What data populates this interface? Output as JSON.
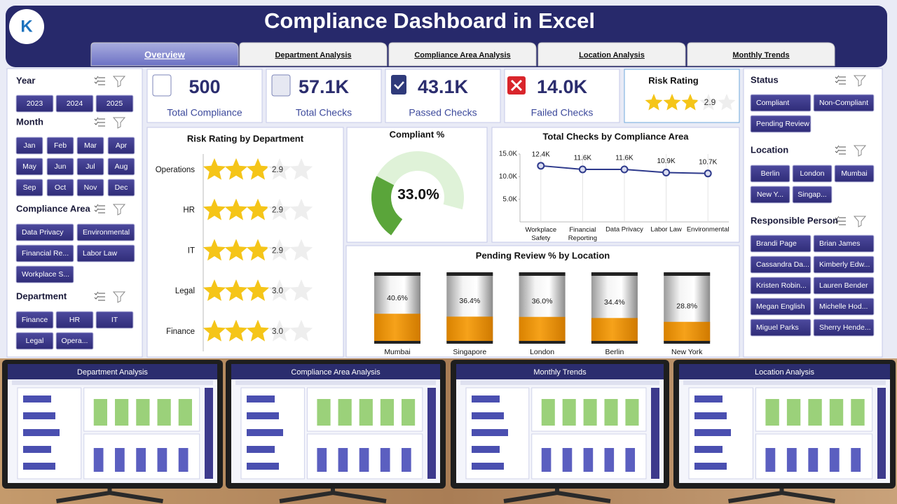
{
  "header": {
    "title": "Compliance Dashboard in Excel"
  },
  "tabs": [
    "Overview",
    "Department Analysis",
    "Compliance Area Analysis",
    "Location Analysis",
    "Monthly Trends"
  ],
  "slicers": [
    {
      "title": "Year",
      "items": [
        "2023",
        "2024",
        "2025"
      ]
    },
    {
      "title": "Month",
      "items": [
        "Jan",
        "Feb",
        "Mar",
        "Apr",
        "May",
        "Jun",
        "Jul",
        "Aug",
        "Sep",
        "Oct",
        "Nov",
        "Dec"
      ]
    },
    {
      "title": "Compliance Area",
      "items": [
        "Data Privacy",
        "Environmental",
        "Financial Re...",
        "Labor Law",
        "Workplace S..."
      ]
    },
    {
      "title": "Department",
      "items": [
        "Finance",
        "HR",
        "IT",
        "Legal",
        "Opera..."
      ]
    },
    {
      "title": "Status",
      "items": [
        "Compliant",
        "Non-Compliant",
        "Pending Review"
      ]
    },
    {
      "title": "Location",
      "items": [
        "Berlin",
        "London",
        "Mumbai",
        "New Y...",
        "Singap..."
      ]
    },
    {
      "title": "Responsible Person",
      "items": [
        "Brandi Page",
        "Brian James",
        "Cassandra Da...",
        "Kimberly Edw...",
        "Kristen Robin...",
        "Lauren Bender",
        "Megan English",
        "Michelle Hod...",
        "Miguel Parks",
        "Sherry Hende..."
      ]
    }
  ],
  "kpis": [
    {
      "value": "500",
      "label": "Total Compliance"
    },
    {
      "value": "57.1K",
      "label": "Total Checks"
    },
    {
      "value": "43.1K",
      "label": "Passed Checks"
    },
    {
      "value": "14.0K",
      "label": "Failed Checks"
    }
  ],
  "risk_kpi": {
    "title": "Risk Rating",
    "value": 2.9
  },
  "chart_data": [
    {
      "type": "rating",
      "title": "Risk Rating by Department",
      "categories": [
        "Operations",
        "HR",
        "IT",
        "Legal",
        "Finance"
      ],
      "values": [
        2.9,
        2.9,
        2.9,
        3.0,
        3.0
      ],
      "value_labels": [
        "2.9",
        "2.9",
        "2.9",
        "3.0",
        "3.0"
      ],
      "color": "#f5c518"
    },
    {
      "type": "gauge",
      "title": "Compliant %",
      "values": [
        33.0
      ],
      "value_labels": [
        "33.0%"
      ],
      "ylim": [
        0,
        100
      ],
      "color": "#5aa53a"
    },
    {
      "type": "line",
      "title": "Total Checks by Compliance Area",
      "categories": [
        "Workplace Safety",
        "Financial Reporting",
        "Data Privacy",
        "Labor Law",
        "Environmental"
      ],
      "values": [
        12400,
        11600,
        11600,
        10900,
        10700
      ],
      "value_labels": [
        "12.4K",
        "11.6K",
        "11.6K",
        "10.9K",
        "10.7K"
      ],
      "ylim": [
        0,
        15000
      ],
      "yticks": [
        {
          "value": 5000,
          "label": "5.0K"
        },
        {
          "value": 10000,
          "label": "10.0K"
        },
        {
          "value": 15000,
          "label": "15.0K"
        }
      ],
      "color": "#2e3a8c"
    },
    {
      "type": "cylinder",
      "title": "Pending Review % by Location",
      "categories": [
        "Mumbai",
        "Singapore",
        "London",
        "Berlin",
        "New York"
      ],
      "values": [
        40.6,
        36.4,
        36.0,
        34.4,
        28.8
      ],
      "value_labels": [
        "40.6%",
        "36.4%",
        "36.0%",
        "34.4%",
        "28.8%"
      ],
      "ylim": [
        0,
        100
      ],
      "color": "#f39c12"
    }
  ],
  "thumbnails": [
    "Department Analysis",
    "Compliance Area Analysis",
    "Monthly Trends",
    "Location Analysis"
  ]
}
